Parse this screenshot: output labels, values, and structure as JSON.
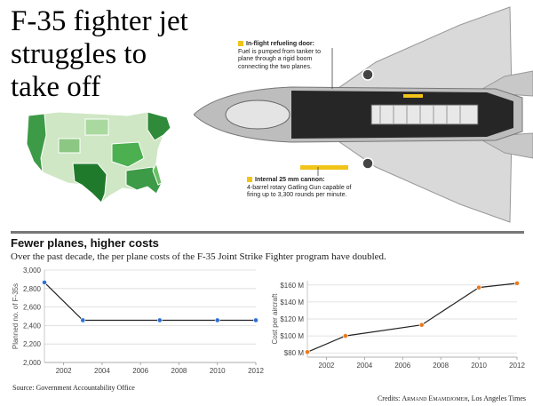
{
  "headline": "F-35 fighter jet struggles to take off",
  "callouts": {
    "refuel": {
      "title": "In-flight refueling door:",
      "text": "Fuel is pumped from tanker to plane through a rigid boom connecting the two planes."
    },
    "cannon": {
      "title": "Internal 25 mm cannon:",
      "text": "4-barrel rotary Gatling Gun capable of firing up to 3,300 rounds per minute."
    }
  },
  "section": {
    "title": "Fewer planes, higher costs",
    "subtitle": "Over the past decade, the per plane costs of the F-35 Joint Strike Fighter program have doubled."
  },
  "colors": {
    "accent_blue": "#2e6fd8",
    "accent_orange": "#ea7a1e",
    "jet_callout": "#f0c419",
    "map_dark": "#207a2b"
  },
  "chart_data": [
    {
      "type": "line",
      "title": "",
      "xlabel": "",
      "ylabel": "Planned no. of F-35s",
      "x": [
        2001,
        2003,
        2007,
        2010,
        2012
      ],
      "values": [
        2866,
        2457,
        2457,
        2457,
        2457
      ],
      "xlim": [
        2001,
        2012
      ],
      "ylim": [
        2000,
        3000
      ],
      "yticks": [
        2000,
        2200,
        2400,
        2600,
        2800,
        3000
      ],
      "ytick_labels": [
        "2,000",
        "2,200",
        "2,400",
        "2,600",
        "2,800",
        "3,000"
      ],
      "xticks": [
        2002,
        2004,
        2006,
        2008,
        2010,
        2012
      ],
      "marker_color": "#2e6fd8"
    },
    {
      "type": "line",
      "title": "",
      "xlabel": "",
      "ylabel": "Cost per aircraft",
      "x": [
        2001,
        2003,
        2007,
        2010,
        2012
      ],
      "values": [
        81,
        100,
        113,
        157,
        162
      ],
      "xlim": [
        2001,
        2012
      ],
      "ylim": [
        75,
        165
      ],
      "yticks": [
        80,
        100,
        120,
        140,
        160
      ],
      "ytick_labels": [
        "$80 M",
        "$100 M",
        "$120 M",
        "$140 M",
        "$160 M"
      ],
      "xticks": [
        2002,
        2004,
        2006,
        2008,
        2010,
        2012
      ],
      "marker_color": "#ea7a1e"
    }
  ],
  "source": "Source: Government Accountability Office",
  "credits": {
    "prefix": "Credits:",
    "name": "Armand Emamdjomeh",
    "org": ", Los Angeles Times"
  }
}
